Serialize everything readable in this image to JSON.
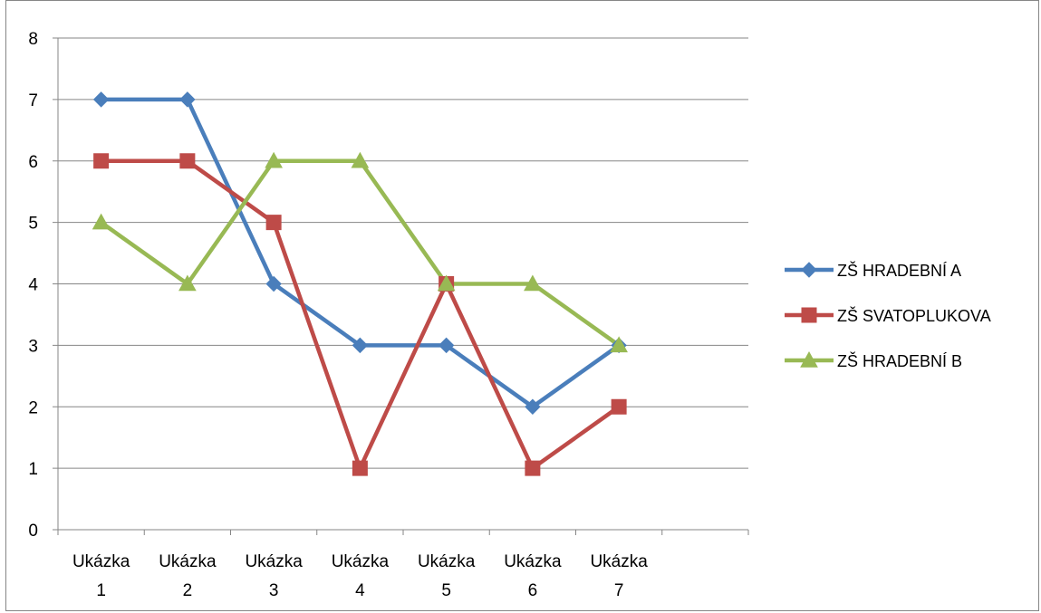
{
  "chart_data": {
    "type": "line",
    "title": "",
    "xlabel": "",
    "ylabel": "",
    "categories": [
      [
        "Ukázka",
        "1"
      ],
      [
        "Ukázka",
        "2"
      ],
      [
        "Ukázka",
        "3"
      ],
      [
        "Ukázka",
        "4"
      ],
      [
        "Ukázka",
        "5"
      ],
      [
        "Ukázka",
        "6"
      ],
      [
        "Ukázka",
        "7"
      ]
    ],
    "category_slots": 8,
    "ylim": [
      0,
      8
    ],
    "yticks": [
      "0",
      "1",
      "2",
      "3",
      "4",
      "5",
      "6",
      "7",
      "8"
    ],
    "grid": "horizontal",
    "legend_position": "right",
    "series": [
      {
        "name": "ZŠ HRADEBNÍ A",
        "values": [
          7,
          7,
          4,
          3,
          3,
          2,
          3
        ],
        "color": "#4a7ebb",
        "marker": "diamond"
      },
      {
        "name": "ZŠ SVATOPLUKOVA",
        "values": [
          6,
          6,
          5,
          1,
          4,
          1,
          2
        ],
        "color": "#be4b48",
        "marker": "square"
      },
      {
        "name": "ZŠ HRADEBNÍ B",
        "values": [
          5,
          4,
          6,
          6,
          4,
          4,
          3
        ],
        "color": "#98b954",
        "marker": "triangle"
      }
    ]
  }
}
